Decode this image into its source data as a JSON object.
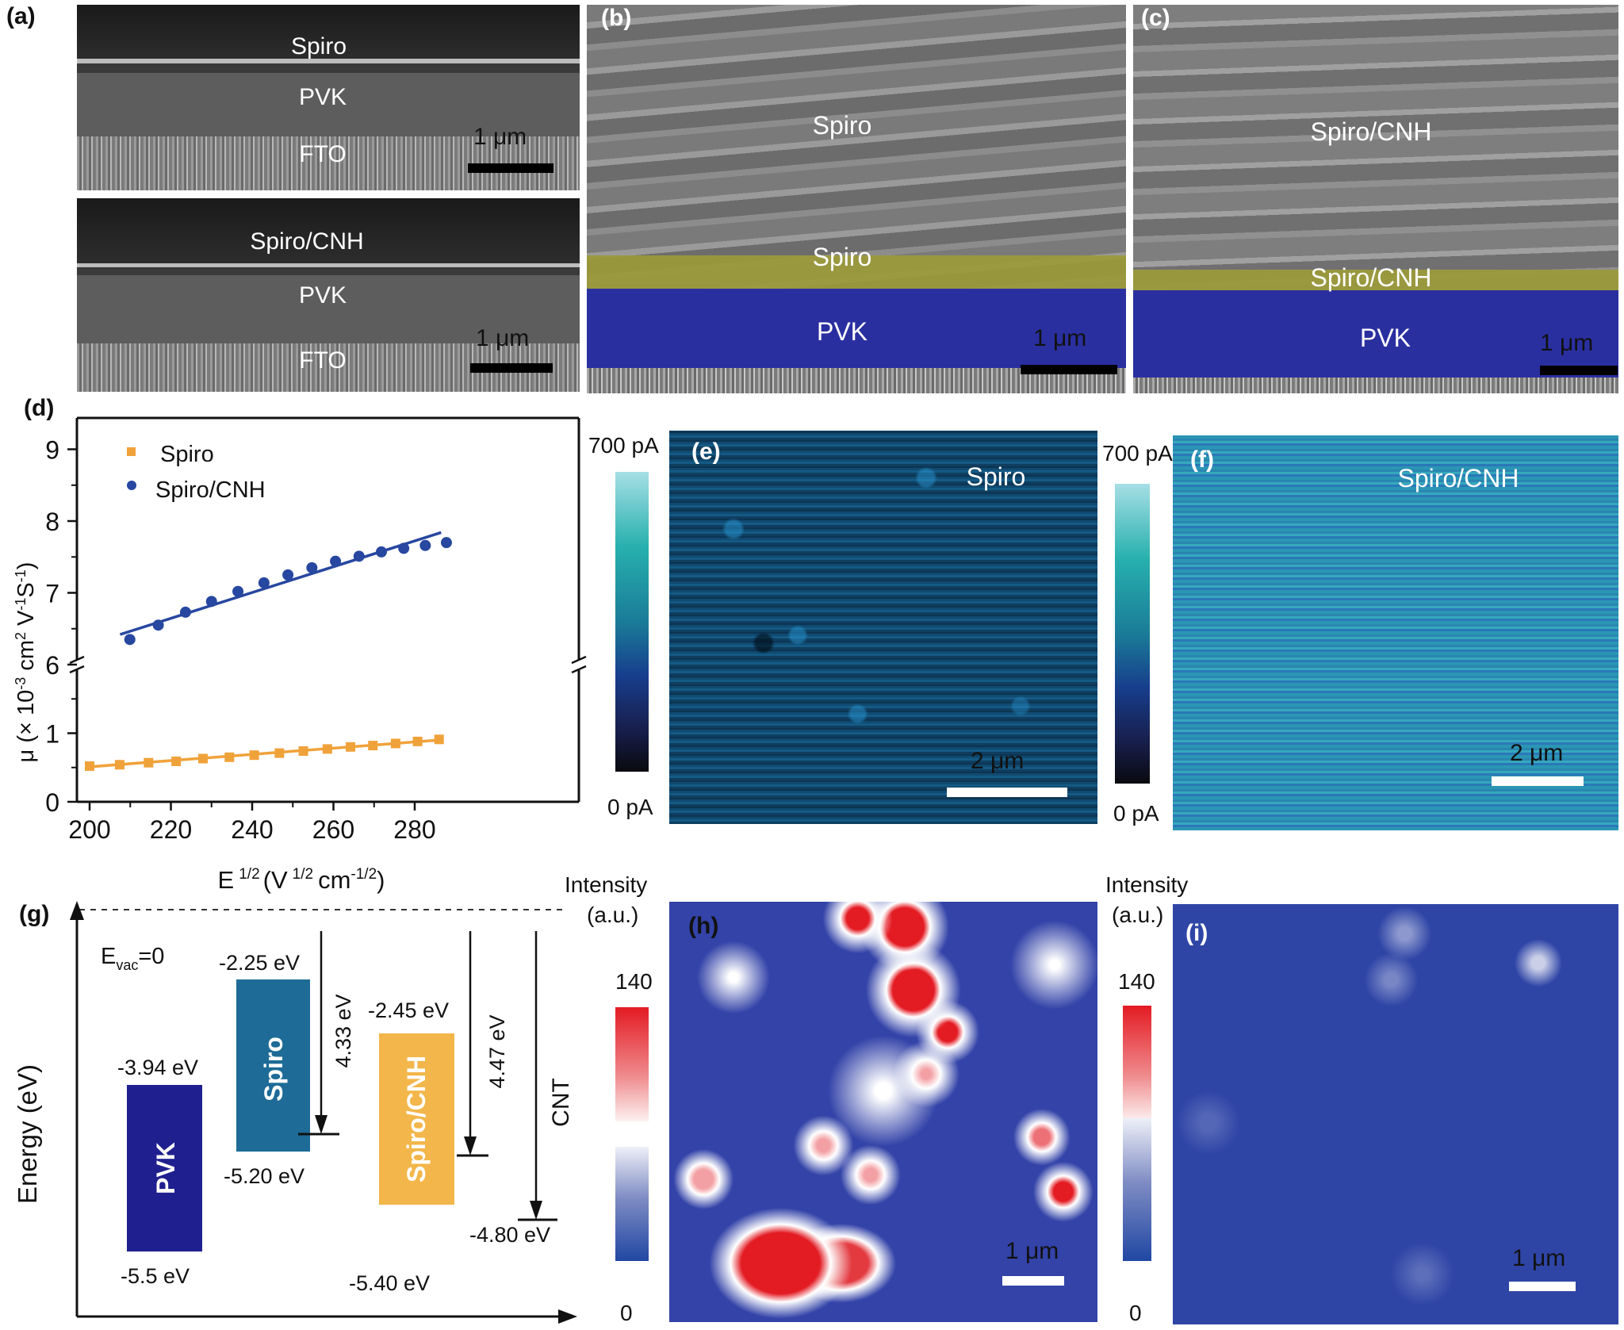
{
  "figure": {
    "panels": {
      "a": {
        "label": "(a)",
        "top": {
          "layers": [
            "Spiro",
            "PVK",
            "FTO"
          ],
          "scalebar": "1 μm"
        },
        "bottom": {
          "layers": [
            "Spiro/CNH",
            "PVK",
            "FTO"
          ],
          "scalebar": "1 μm"
        }
      },
      "b": {
        "label": "(b)",
        "surface": "Spiro",
        "layer_top": "Spiro",
        "layer_bottom": "PVK",
        "scalebar": "1 μm",
        "colors": {
          "htl": "#9c9a3a",
          "pvk": "#2a2fa0"
        }
      },
      "c": {
        "label": "(c)",
        "surface": "Spiro/CNH",
        "layer_top": "Spiro/CNH",
        "layer_bottom": "PVK",
        "scalebar": "1 μm"
      },
      "d": {
        "label": "(d)"
      },
      "e": {
        "label": "(e)",
        "sample": "Spiro",
        "scalebar": "2 μm",
        "colorbar": {
          "max": "700 pA",
          "min": "0 pA"
        },
        "fill_level": 0.35
      },
      "f": {
        "label": "(f)",
        "sample": "Spiro/CNH",
        "scalebar": "2 μm",
        "colorbar": {
          "max": "700 pA",
          "min": "0 pA"
        },
        "fill_level": 0.7
      },
      "g": {
        "label": "(g)",
        "evac": "E",
        "evac_sub": "vac",
        "evac_suffix": "=0",
        "ylabel": "Energy (eV)",
        "blocks": [
          {
            "name": "PVK",
            "top": "-3.94 eV",
            "bottom": "-5.5 eV",
            "top_val": -3.94,
            "bottom_val": -5.5,
            "color": "#1f1f8f"
          },
          {
            "name": "Spiro",
            "top": "-2.25 eV",
            "bottom": "-5.20 eV",
            "top_val": -2.25,
            "bottom_val": -5.2,
            "color": "#1d6b96"
          },
          {
            "name": "Spiro/CNH",
            "top": "-2.45 eV",
            "bottom": "-5.40 eV",
            "top_val": -2.45,
            "bottom_val": -5.4,
            "color": "#f2b64a"
          }
        ],
        "arrows": [
          {
            "label": "4.33 eV",
            "value": 4.33
          },
          {
            "label": "4.47 eV",
            "value": 4.47
          },
          {
            "label": "CNT",
            "value": 4.8,
            "level_label": "-4.80 eV"
          }
        ]
      },
      "h": {
        "label": "(h)",
        "scalebar": "1 μm",
        "colorbar": {
          "title1": "Intensity",
          "title2": "(a.u.)",
          "max": "140",
          "min": "0"
        }
      },
      "i": {
        "label": "(i)",
        "scalebar": "1 μm",
        "colorbar": {
          "title1": "Intensity",
          "title2": "(a.u.)",
          "max": "140",
          "min": "0"
        }
      }
    }
  },
  "chart_data": {
    "type": "scatter",
    "title": "",
    "xlabel": "E 1/2 (V 1/2 cm-1/2)",
    "xlabel_parts": {
      "main": "E",
      "sup1": "1/2",
      "mid": "(V",
      "sup2": "1/2",
      "unit": "cm",
      "sup3": "-1/2",
      "close": ")"
    },
    "ylabel": "μ (× 10-3 cm2 V-1S-1)",
    "ylabel_parts": {
      "pre": "μ (× 10",
      "s1": "-3",
      "m1": " cm",
      "s2": "2",
      "m2": " V",
      "s3": "-1",
      "m3": "S",
      "s4": "-1",
      "post": ")"
    },
    "xlim": [
      195,
      290
    ],
    "ylim_lower": [
      0,
      1.6
    ],
    "ylim_upper": [
      6,
      9.5
    ],
    "axis_break": 6,
    "xticks": [
      200,
      220,
      240,
      260,
      280
    ],
    "yticks": [
      0,
      1,
      6,
      7,
      8,
      9
    ],
    "ytick_labels": [
      "0",
      "1",
      "6",
      "7",
      "8",
      "9"
    ],
    "legend_position": "top-left",
    "series": [
      {
        "name": "Spiro",
        "marker": "square",
        "color": "#f0a23a",
        "x": [
          200,
          207.4,
          214.5,
          221.3,
          227.9,
          234.4,
          240.5,
          246.7,
          252.6,
          258.5,
          264.2,
          269.7,
          275.3,
          280.7,
          286.0
        ],
        "y": [
          0.52,
          0.54,
          0.57,
          0.59,
          0.63,
          0.65,
          0.68,
          0.71,
          0.74,
          0.77,
          0.8,
          0.82,
          0.85,
          0.88,
          0.91
        ],
        "fit": {
          "x": [
            200,
            286
          ],
          "y": [
            0.51,
            0.9
          ]
        }
      },
      {
        "name": "Spiro/CNH",
        "marker": "circle",
        "color": "#2747a0",
        "x": [
          209.9,
          216.9,
          223.6,
          230.0,
          236.5,
          242.9,
          248.8,
          254.7,
          260.5,
          266.3,
          271.8,
          277.3,
          282.6,
          287.8
        ],
        "y": [
          6.35,
          6.55,
          6.73,
          6.88,
          7.02,
          7.14,
          7.25,
          7.35,
          7.44,
          7.51,
          7.57,
          7.62,
          7.66,
          7.7
        ],
        "fit": {
          "x": [
            207.5,
            286.5
          ],
          "y": [
            6.42,
            7.84
          ]
        }
      }
    ]
  }
}
